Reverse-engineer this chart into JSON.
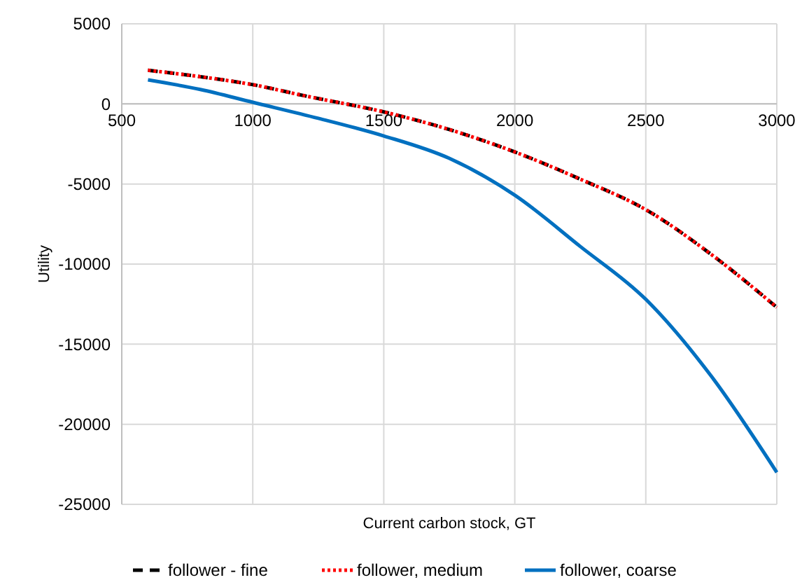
{
  "chart_data": {
    "type": "line",
    "xlabel": "Current carbon stock, GT",
    "ylabel": "Utility",
    "xlim": [
      500,
      3000
    ],
    "xticks": [
      500,
      1000,
      1500,
      2000,
      2500,
      3000
    ],
    "ylim": [
      -25000,
      5000
    ],
    "yticks": [
      -25000,
      -20000,
      -15000,
      -10000,
      -5000,
      0,
      5000
    ],
    "grid": true,
    "legend": "bottom",
    "series": [
      {
        "name": "follower - fine",
        "color": "#000000",
        "line_style": "dashed",
        "x": [
          600,
          800,
          1000,
          1200,
          1500,
          1750,
          2000,
          2250,
          2500,
          2750,
          3000
        ],
        "values": [
          2100,
          1700,
          1200,
          500,
          -500,
          -1600,
          -3000,
          -4700,
          -6600,
          -9400,
          -12700
        ]
      },
      {
        "name": "follower, medium",
        "color": "#ff0000",
        "line_style": "dotted",
        "x": [
          600,
          800,
          1000,
          1200,
          1500,
          1750,
          2000,
          2250,
          2500,
          2750,
          3000
        ],
        "values": [
          2100,
          1700,
          1200,
          500,
          -500,
          -1600,
          -3000,
          -4700,
          -6600,
          -9400,
          -12700
        ]
      },
      {
        "name": "follower, coarse",
        "color": "#0070c0",
        "line_style": "solid",
        "x": [
          600,
          800,
          1000,
          1250,
          1500,
          1750,
          2000,
          2250,
          2500,
          2750,
          3000
        ],
        "values": [
          1500,
          900,
          100,
          -900,
          -2000,
          -3400,
          -5700,
          -8900,
          -12200,
          -17000,
          -23000
        ]
      }
    ]
  }
}
